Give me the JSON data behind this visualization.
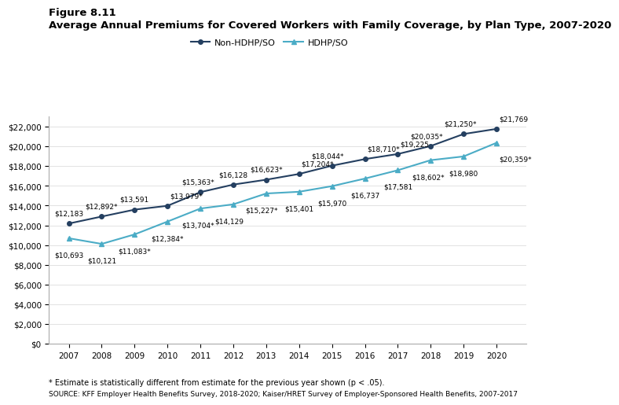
{
  "years": [
    2007,
    2008,
    2009,
    2010,
    2011,
    2012,
    2013,
    2014,
    2015,
    2016,
    2017,
    2018,
    2019,
    2020
  ],
  "non_hdhp": [
    12183,
    12892,
    13591,
    13979,
    15363,
    16128,
    16623,
    17204,
    18044,
    18710,
    19225,
    20035,
    21250,
    21769
  ],
  "hdhp": [
    10693,
    10121,
    11083,
    12384,
    13704,
    14129,
    15227,
    15401,
    15970,
    16737,
    17581,
    18602,
    18980,
    20359
  ],
  "non_hdhp_labels": [
    "$12,183",
    "$12,892*",
    "$13,591",
    "$13,979*",
    "$15,363*",
    "$16,128",
    "$16,623*",
    "$17,204*",
    "$18,044*",
    "$18,710*",
    "$19,225",
    "$20,035*",
    "$21,250*",
    "$21,769"
  ],
  "hdhp_labels": [
    "$10,693",
    "$10,121",
    "$11,083*",
    "$12,384*",
    "$13,704*",
    "$14,129",
    "$15,227*",
    "$15,401",
    "$15,970",
    "$16,737",
    "$17,581",
    "$18,602*",
    "$18,980",
    "$20,359*"
  ],
  "non_hdhp_color": "#243F60",
  "hdhp_color": "#4BACC6",
  "figure_title": "Figure 8.11",
  "chart_title": "Average Annual Premiums for Covered Workers with Family Coverage, by Plan Type, 2007-2020",
  "legend_non_hdhp": "Non-HDHP/SO",
  "legend_hdhp": "HDHP/SO",
  "ylim": [
    0,
    23000
  ],
  "yticks": [
    0,
    2000,
    4000,
    6000,
    8000,
    10000,
    12000,
    14000,
    16000,
    18000,
    20000,
    22000
  ],
  "ytick_labels": [
    "$0",
    "$2,000",
    "$4,000",
    "$6,000",
    "$8,000",
    "$10,000",
    "$12,000",
    "$14,000",
    "$16,000",
    "$18,000",
    "$20,000",
    "$22,000"
  ],
  "footnote1": "* Estimate is statistically different from estimate for the previous year shown (p < .05).",
  "footnote2": "SOURCE: KFF Employer Health Benefits Survey, 2018-2020; Kaiser/HRET Survey of Employer-Sponsored Health Benefits, 2007-2017",
  "bg_color": "#FFFFFF",
  "label_fontsize": 6.5,
  "axis_fontsize": 7.5,
  "title_fontsize": 9.5,
  "fig_title_fontsize": 9.5
}
